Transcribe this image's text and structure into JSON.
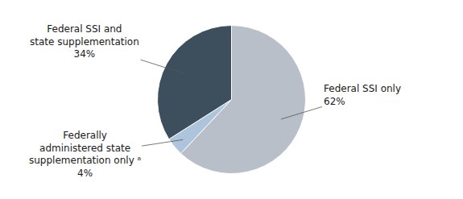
{
  "chart_data": {
    "type": "pie",
    "values": [
      62,
      4,
      34
    ],
    "colors": [
      "#b8bfc8",
      "#adc4dc",
      "#3d4f5c"
    ],
    "annotations": [
      "Federal SSI only\n62%",
      "Federally\nadministered state\nsupplementation only ᵃ\n4%",
      "Federal SSI and\nstate supplementation\n34%"
    ]
  }
}
